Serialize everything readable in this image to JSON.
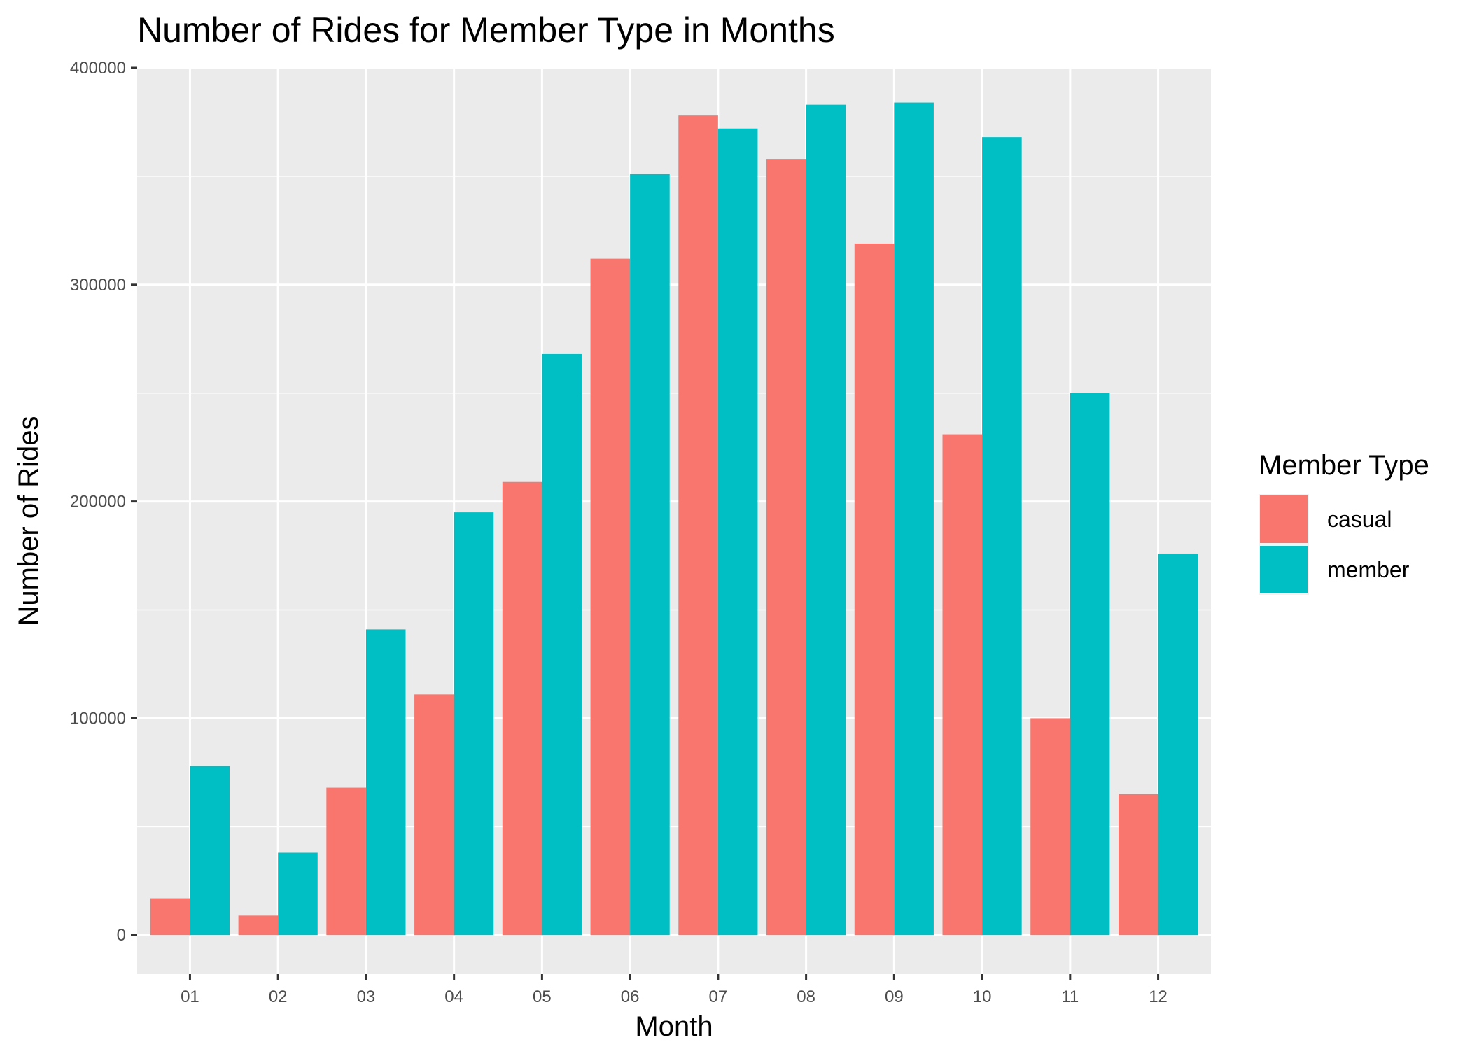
{
  "chart_data": {
    "type": "bar",
    "title": "Number of Rides for Member Type in Months",
    "xlabel": "Month",
    "ylabel": "Number of Rides",
    "categories": [
      "01",
      "02",
      "03",
      "04",
      "05",
      "06",
      "07",
      "08",
      "09",
      "10",
      "11",
      "12"
    ],
    "series": [
      {
        "name": "casual",
        "color": "#F8766D",
        "values": [
          17000,
          9000,
          68000,
          111000,
          209000,
          312000,
          378000,
          358000,
          319000,
          231000,
          100000,
          65000
        ]
      },
      {
        "name": "member",
        "color": "#00BFC4",
        "values": [
          78000,
          38000,
          141000,
          195000,
          268000,
          351000,
          372000,
          383000,
          384000,
          368000,
          250000,
          176000
        ]
      }
    ],
    "yticks": [
      0,
      100000,
      200000,
      300000,
      400000
    ],
    "yticklabels": [
      "0",
      "100000",
      "200000",
      "300000",
      "400000"
    ],
    "ylim": [
      -18000,
      400000
    ],
    "grid": true,
    "legend": {
      "title": "Member Type",
      "position": "right"
    },
    "panel_background": "#EBEBEB",
    "grid_color": "#FFFFFF"
  }
}
